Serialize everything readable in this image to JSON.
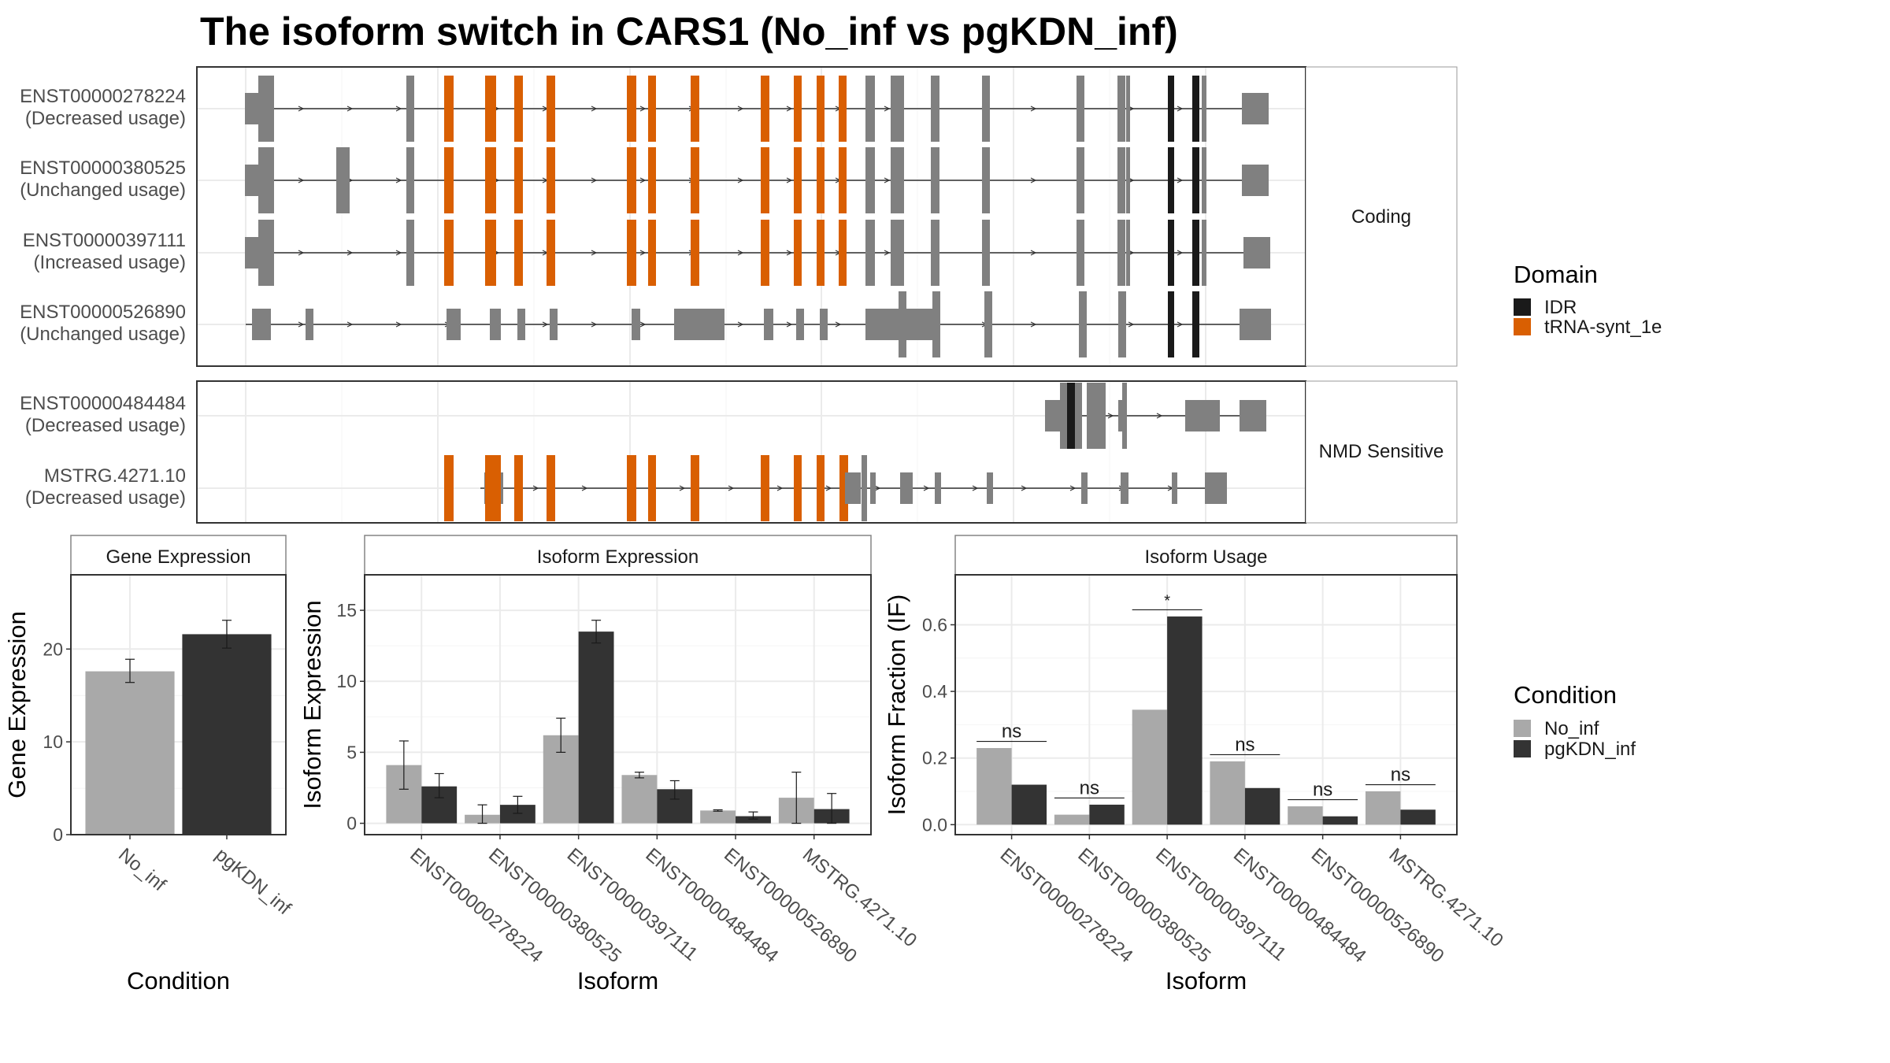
{
  "title": "The isoform switch in CARS1 (No_inf vs pgKDN_inf)",
  "colors": {
    "idr": "#1a1a1a",
    "trna": "#d95f02",
    "exon": "#808080",
    "no_inf": "#a9a9a9",
    "pgkdn_inf": "#333333",
    "grid": "#ebebeb",
    "strip": "#ffffff",
    "panel_border": "#333333"
  },
  "legend_domain": {
    "title": "Domain",
    "items": [
      {
        "label": "IDR",
        "color": "#1a1a1a"
      },
      {
        "label": "tRNA-synt_1e",
        "color": "#d95f02"
      }
    ]
  },
  "legend_condition": {
    "title": "Condition",
    "items": [
      {
        "label": "No_inf",
        "color": "#a9a9a9"
      },
      {
        "label": "pgKDN_inf",
        "color": "#333333"
      }
    ]
  },
  "transcript_panels": [
    {
      "facet": "Coding",
      "transcripts": [
        {
          "id": "ENST00000278224",
          "usage": "(Decreased usage)"
        },
        {
          "id": "ENST00000380525",
          "usage": "(Unchanged usage)"
        },
        {
          "id": "ENST00000397111",
          "usage": "(Increased usage)"
        },
        {
          "id": "ENST00000526890",
          "usage": "(Unchanged usage)"
        }
      ]
    },
    {
      "facet": "NMD Sensitive",
      "transcripts": [
        {
          "id": "ENST00000484484",
          "usage": "(Decreased usage)"
        },
        {
          "id": "MSTRG.4271.10",
          "usage": "(Decreased usage)"
        }
      ]
    }
  ],
  "chart_data": [
    {
      "type": "bar",
      "title": "Gene Expression",
      "xlabel": "Condition",
      "ylabel": "Gene Expression",
      "categories": [
        "No_inf",
        "pgKDN_inf"
      ],
      "values": [
        17.6,
        21.6
      ],
      "errors": [
        [
          16.4,
          18.9
        ],
        [
          20.1,
          23.1
        ]
      ],
      "ylim": [
        0,
        28
      ],
      "yticks": [
        0,
        10,
        20
      ]
    },
    {
      "type": "bar",
      "title": "Isoform Expression",
      "xlabel": "Isoform",
      "ylabel": "Isoform Expression",
      "categories": [
        "ENST00000278224",
        "ENST00000380525",
        "ENST00000397111",
        "ENST00000484484",
        "ENST00000526890",
        "MSTRG.4271.10"
      ],
      "series": [
        {
          "name": "No_inf",
          "values": [
            4.1,
            0.6,
            6.2,
            3.4,
            0.9,
            1.8
          ],
          "errors": [
            [
              2.4,
              5.8
            ],
            [
              0.0,
              1.3
            ],
            [
              5.0,
              7.4
            ],
            [
              3.2,
              3.6
            ],
            [
              0.85,
              0.95
            ],
            [
              0.0,
              3.6
            ]
          ]
        },
        {
          "name": "pgKDN_inf",
          "values": [
            2.6,
            1.3,
            13.5,
            2.4,
            0.5,
            1.0
          ],
          "errors": [
            [
              1.8,
              3.5
            ],
            [
              0.7,
              1.9
            ],
            [
              12.7,
              14.3
            ],
            [
              1.7,
              3.0
            ],
            [
              0.3,
              0.8
            ],
            [
              0.0,
              2.1
            ]
          ]
        }
      ],
      "ylim": [
        -0.8,
        17.5
      ],
      "yticks": [
        0,
        5,
        10,
        15
      ]
    },
    {
      "type": "bar",
      "title": "Isoform Usage",
      "xlabel": "Isoform",
      "ylabel": "Isoform Fraction (IF)",
      "categories": [
        "ENST00000278224",
        "ENST00000380525",
        "ENST00000397111",
        "ENST00000484484",
        "ENST00000526890",
        "MSTRG.4271.10"
      ],
      "series": [
        {
          "name": "No_inf",
          "values": [
            0.23,
            0.03,
            0.345,
            0.19,
            0.055,
            0.1
          ]
        },
        {
          "name": "pgKDN_inf",
          "values": [
            0.12,
            0.06,
            0.625,
            0.11,
            0.025,
            0.045
          ]
        }
      ],
      "significance": [
        "ns",
        "ns",
        "*",
        "ns",
        "ns",
        "ns"
      ],
      "ylim": [
        -0.03,
        0.75
      ],
      "yticks": [
        0.0,
        0.2,
        0.4,
        0.6
      ],
      "yticklabels": [
        "0.0",
        "0.2",
        "0.4",
        "0.6"
      ]
    }
  ]
}
